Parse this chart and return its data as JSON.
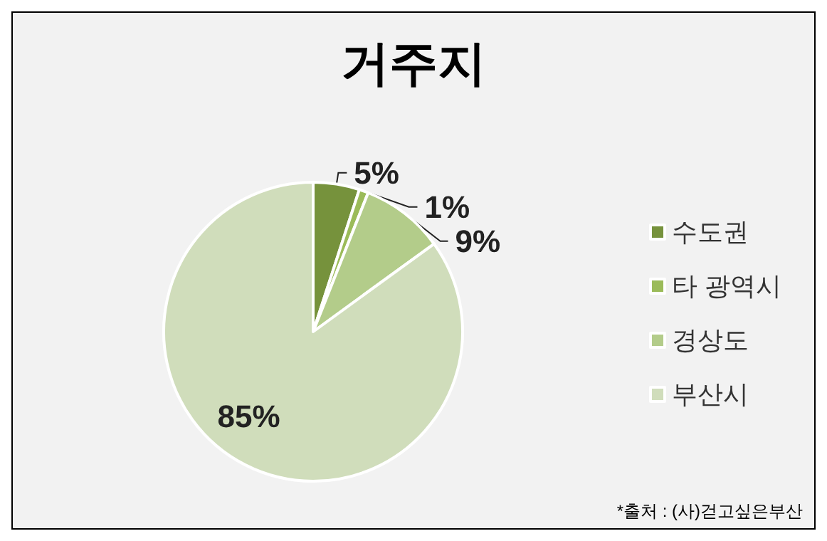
{
  "chart_data": {
    "type": "pie",
    "title": "거주지",
    "categories": [
      "수도권",
      "타 광역시",
      "경상도",
      "부산시"
    ],
    "values": [
      5,
      1,
      9,
      85
    ],
    "colors": [
      "#76923c",
      "#9bbb59",
      "#b3cc8a",
      "#d0ddbb"
    ],
    "value_labels": [
      "5%",
      "1%",
      "9%",
      "85%"
    ],
    "legend": "right",
    "annotations": [
      "*출처 : (사)걷고싶은부산"
    ]
  }
}
